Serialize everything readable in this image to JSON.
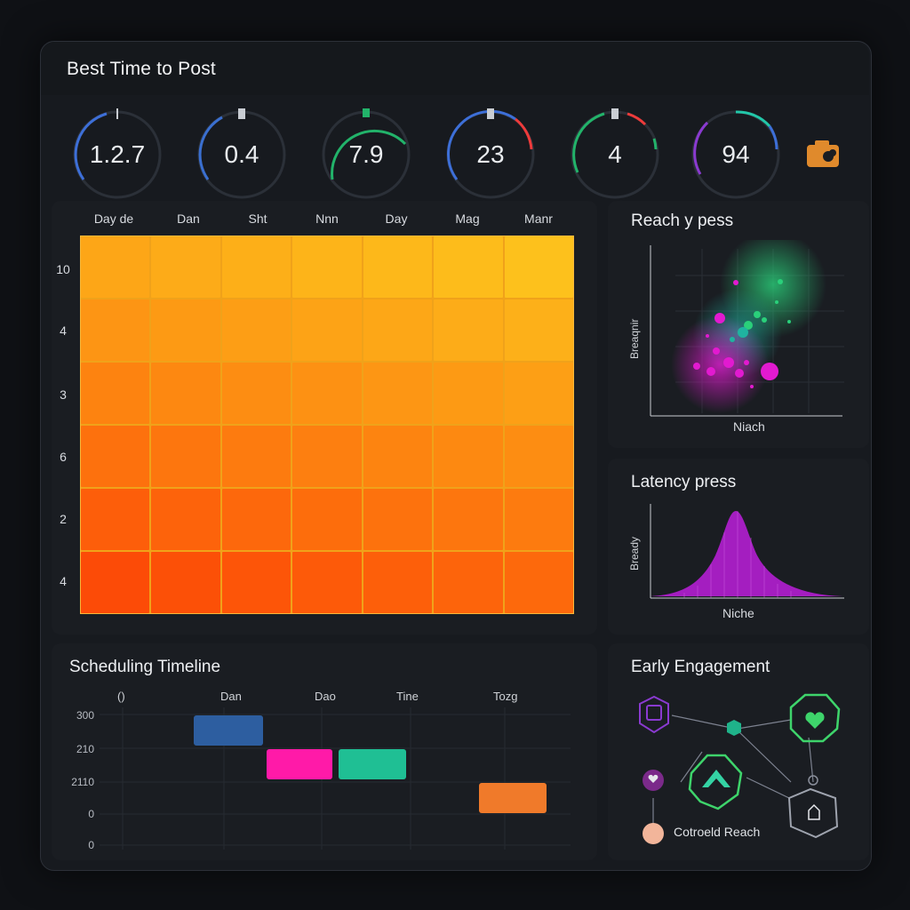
{
  "header": {
    "title": "Best Time to Post"
  },
  "gauges": [
    {
      "value": "1.2.7",
      "color": "#3d6fd8",
      "fraction": 0.6
    },
    {
      "value": "0.4",
      "color": "#3a6fd0",
      "fraction": 0.45
    },
    {
      "value": "7.9",
      "color": "#22b36a",
      "fraction": 0.55
    },
    {
      "value": "23",
      "color": "#3d6fd8",
      "fraction": 0.7,
      "accent": "#ee3b3b"
    },
    {
      "value": "4",
      "color": "#22b36a",
      "fraction": 0.75,
      "accent": "#ee3b3b"
    },
    {
      "value": "94",
      "color": "#3d6fd8",
      "fraction": 0.3,
      "accent": "#22c7a9"
    }
  ],
  "heatmap": {
    "columns": [
      "Day de",
      "Dan",
      "Sht",
      "Nnn",
      "Day",
      "Mag",
      "Manr"
    ],
    "rows": [
      "10",
      "4",
      "3",
      "6",
      "2",
      "4"
    ]
  },
  "reach": {
    "title": "Reach y pess",
    "xlabel": "Niach",
    "ylabel": "Breaqnir"
  },
  "latency": {
    "title": "Latency press",
    "xlabel": "Niche",
    "ylabel": "Bready"
  },
  "timeline": {
    "title": "Scheduling Timeline",
    "columns": [
      "()",
      "Dan",
      "Dao",
      "Tine",
      "Tozg"
    ],
    "rows": [
      "300",
      "210",
      "2110",
      "0",
      "0"
    ],
    "bars": [
      {
        "color": "#2d5ea0"
      },
      {
        "color": "#ff1aa8"
      },
      {
        "color": "#1fbf94"
      },
      {
        "color": "#f07a2a"
      }
    ]
  },
  "engagement": {
    "title": "Early Engagement",
    "label": "Cotroeld Reach"
  }
}
